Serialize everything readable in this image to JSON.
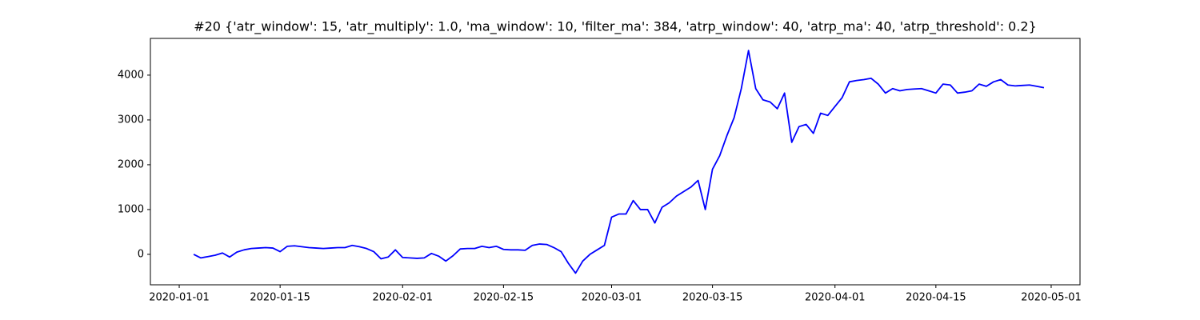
{
  "chart_data": {
    "type": "line",
    "title": "#20 {'atr_window': 15, 'atr_multiply': 1.0, 'ma_window': 10, 'filter_ma': 384, 'atrp_window': 40, 'atrp_ma': 40, 'atrp_threshold': 0.2}",
    "color": "#0000ff",
    "x": [
      "2020-01-03",
      "2020-01-04",
      "2020-01-05",
      "2020-01-06",
      "2020-01-07",
      "2020-01-08",
      "2020-01-09",
      "2020-01-10",
      "2020-01-11",
      "2020-01-12",
      "2020-01-13",
      "2020-01-14",
      "2020-01-15",
      "2020-01-16",
      "2020-01-17",
      "2020-01-18",
      "2020-01-19",
      "2020-01-20",
      "2020-01-21",
      "2020-01-22",
      "2020-01-23",
      "2020-01-24",
      "2020-01-25",
      "2020-01-26",
      "2020-01-27",
      "2020-01-28",
      "2020-01-29",
      "2020-01-30",
      "2020-01-31",
      "2020-02-01",
      "2020-02-02",
      "2020-02-03",
      "2020-02-04",
      "2020-02-05",
      "2020-02-06",
      "2020-02-07",
      "2020-02-08",
      "2020-02-09",
      "2020-02-10",
      "2020-02-11",
      "2020-02-12",
      "2020-02-13",
      "2020-02-14",
      "2020-02-15",
      "2020-02-16",
      "2020-02-17",
      "2020-02-18",
      "2020-02-19",
      "2020-02-20",
      "2020-02-21",
      "2020-02-22",
      "2020-02-23",
      "2020-02-24",
      "2020-02-25",
      "2020-02-26",
      "2020-02-27",
      "2020-02-28",
      "2020-02-29",
      "2020-03-01",
      "2020-03-02",
      "2020-03-03",
      "2020-03-04",
      "2020-03-05",
      "2020-03-06",
      "2020-03-07",
      "2020-03-08",
      "2020-03-09",
      "2020-03-10",
      "2020-03-11",
      "2020-03-12",
      "2020-03-13",
      "2020-03-14",
      "2020-03-15",
      "2020-03-16",
      "2020-03-17",
      "2020-03-18",
      "2020-03-19",
      "2020-03-20",
      "2020-03-21",
      "2020-03-22",
      "2020-03-23",
      "2020-03-24",
      "2020-03-25",
      "2020-03-26",
      "2020-03-27",
      "2020-03-28",
      "2020-03-29",
      "2020-03-30",
      "2020-03-31",
      "2020-04-01",
      "2020-04-02",
      "2020-04-03",
      "2020-04-04",
      "2020-04-05",
      "2020-04-06",
      "2020-04-07",
      "2020-04-08",
      "2020-04-09",
      "2020-04-10",
      "2020-04-11",
      "2020-04-12",
      "2020-04-13",
      "2020-04-14",
      "2020-04-15",
      "2020-04-16",
      "2020-04-17",
      "2020-04-18",
      "2020-04-19",
      "2020-04-20",
      "2020-04-21",
      "2020-04-22",
      "2020-04-23",
      "2020-04-24",
      "2020-04-25",
      "2020-04-26",
      "2020-04-27",
      "2020-04-28",
      "2020-04-29",
      "2020-04-30"
    ],
    "values": [
      0,
      -80,
      -50,
      -20,
      30,
      -60,
      50,
      100,
      130,
      140,
      150,
      140,
      60,
      180,
      190,
      170,
      150,
      140,
      130,
      140,
      150,
      150,
      200,
      170,
      130,
      60,
      -100,
      -60,
      100,
      -70,
      -80,
      -90,
      -80,
      20,
      -40,
      -150,
      -30,
      120,
      130,
      130,
      180,
      150,
      180,
      110,
      100,
      100,
      90,
      200,
      230,
      220,
      150,
      60,
      -200,
      -420,
      -150,
      0,
      100,
      200,
      830,
      900,
      900,
      1200,
      1000,
      1000,
      700,
      1050,
      1150,
      1300,
      1400,
      1500,
      1650,
      1000,
      1900,
      2200,
      2650,
      3050,
      3700,
      4550,
      3700,
      3450,
      3400,
      3250,
      3600,
      2500,
      2850,
      2900,
      2700,
      3150,
      3100,
      3300,
      3500,
      3850,
      3880,
      3900,
      3930,
      3800,
      3600,
      3700,
      3650,
      3680,
      3690,
      3700,
      3650,
      3600,
      3800,
      3780,
      3600,
      3620,
      3650,
      3800,
      3750,
      3850,
      3900,
      3780,
      3760,
      3770,
      3780,
      3750,
      3720
    ],
    "xlim": [
      "2019-12-28",
      "2020-05-05"
    ],
    "xticks": [
      "2020-01-01",
      "2020-01-15",
      "2020-02-01",
      "2020-02-15",
      "2020-03-01",
      "2020-03-15",
      "2020-04-01",
      "2020-04-15",
      "2020-05-01"
    ],
    "ylim": [
      -680,
      4820
    ],
    "yticks": [
      0,
      1000,
      2000,
      3000,
      4000
    ]
  }
}
